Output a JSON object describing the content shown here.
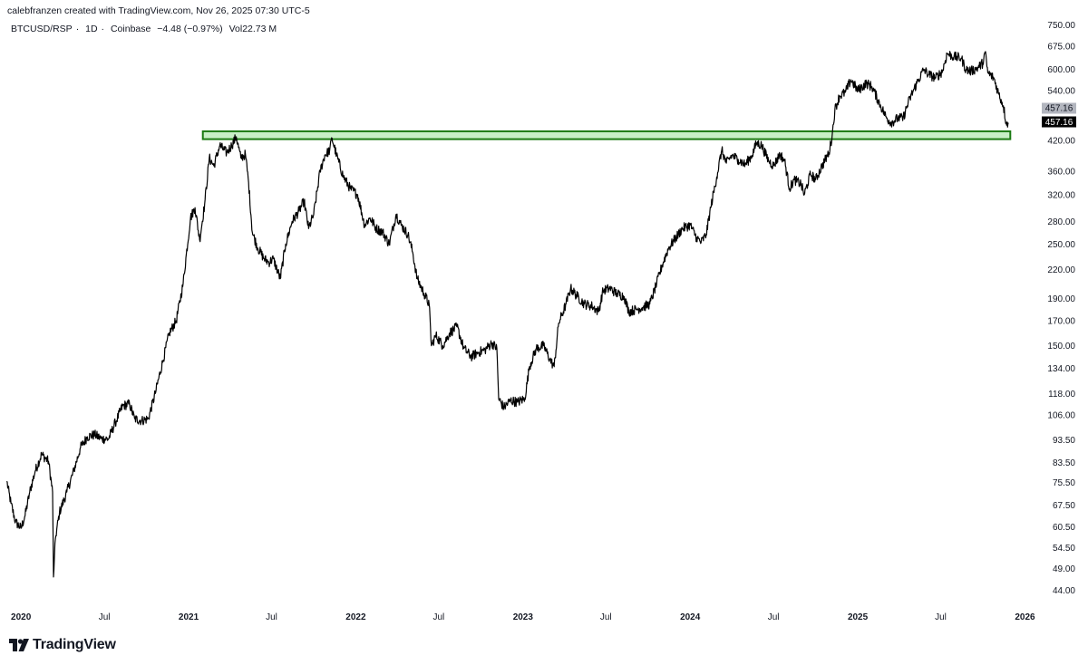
{
  "header": {
    "attribution": "calebfranzen created with TradingView.com, Nov 26, 2025 07:30 UTC-5",
    "symbol": "BTCUSD/RSP",
    "interval": "1D",
    "exchange": "Coinbase",
    "change": "−4.48 (−0.97%)",
    "volume_label": "Vol",
    "volume_value": "22.73 M",
    "separator": "·"
  },
  "brand": {
    "name": "TradingView",
    "logo_icon": "tradingview-logo-icon"
  },
  "chart_data": {
    "type": "line",
    "title": "",
    "xlabel": "",
    "ylabel": "",
    "y_scale": "log",
    "ylim": [
      40.8,
      820
    ],
    "xlim": [
      "2019-11-28",
      "2026-01-10"
    ],
    "grid": false,
    "line_color": "#000000",
    "x_ticks": [
      {
        "date": "2020-01-01",
        "label": "2020",
        "bold": true
      },
      {
        "date": "2020-07-01",
        "label": "Jul",
        "bold": false
      },
      {
        "date": "2021-01-01",
        "label": "2021",
        "bold": true
      },
      {
        "date": "2021-07-01",
        "label": "Jul",
        "bold": false
      },
      {
        "date": "2022-01-01",
        "label": "2022",
        "bold": true
      },
      {
        "date": "2022-07-01",
        "label": "Jul",
        "bold": false
      },
      {
        "date": "2023-01-01",
        "label": "2023",
        "bold": true
      },
      {
        "date": "2023-07-01",
        "label": "Jul",
        "bold": false
      },
      {
        "date": "2024-01-01",
        "label": "2024",
        "bold": true
      },
      {
        "date": "2024-07-01",
        "label": "Jul",
        "bold": false
      },
      {
        "date": "2025-01-01",
        "label": "2025",
        "bold": true
      },
      {
        "date": "2025-07-01",
        "label": "Jul",
        "bold": false
      },
      {
        "date": "2026-01-01",
        "label": "2026",
        "bold": true
      }
    ],
    "y_ticks": [
      "750.00",
      "675.00",
      "600.00",
      "540.00",
      "420.00",
      "360.00",
      "320.00",
      "280.00",
      "250.00",
      "220.00",
      "190.00",
      "170.00",
      "150.00",
      "134.00",
      "118.00",
      "106.00",
      "93.50",
      "83.50",
      "75.50",
      "67.50",
      "60.50",
      "54.50",
      "49.00",
      "44.00"
    ],
    "last_price": {
      "value": 457.16,
      "label": "457.16",
      "close_label": "457.16"
    },
    "annotations": [
      {
        "type": "zone",
        "x_start": "2021-02-01",
        "x_end": "2025-11-30",
        "y_low": 423,
        "y_high": 440,
        "fill": "#c8efc6",
        "stroke": "#1b7a12"
      }
    ],
    "series": [
      {
        "points": [
          [
            "2019-12-01",
            76
          ],
          [
            "2019-12-10",
            68
          ],
          [
            "2019-12-20",
            62
          ],
          [
            "2020-01-01",
            60
          ],
          [
            "2020-01-10",
            64
          ],
          [
            "2020-01-20",
            72
          ],
          [
            "2020-02-01",
            80
          ],
          [
            "2020-02-15",
            87
          ],
          [
            "2020-03-01",
            84
          ],
          [
            "2020-03-10",
            72
          ],
          [
            "2020-03-12",
            47
          ],
          [
            "2020-03-16",
            57
          ],
          [
            "2020-03-25",
            65
          ],
          [
            "2020-04-10",
            72
          ],
          [
            "2020-04-25",
            80
          ],
          [
            "2020-05-10",
            90
          ],
          [
            "2020-05-25",
            95
          ],
          [
            "2020-06-10",
            96
          ],
          [
            "2020-06-25",
            94
          ],
          [
            "2020-07-10",
            94
          ],
          [
            "2020-07-25",
            102
          ],
          [
            "2020-08-10",
            111
          ],
          [
            "2020-08-25",
            112
          ],
          [
            "2020-09-05",
            104
          ],
          [
            "2020-09-20",
            103
          ],
          [
            "2020-10-05",
            104
          ],
          [
            "2020-10-20",
            118
          ],
          [
            "2020-11-05",
            138
          ],
          [
            "2020-11-20",
            160
          ],
          [
            "2020-12-05",
            170
          ],
          [
            "2020-12-20",
            205
          ],
          [
            "2021-01-05",
            285
          ],
          [
            "2021-01-15",
            300
          ],
          [
            "2021-01-25",
            255
          ],
          [
            "2021-02-05",
            305
          ],
          [
            "2021-02-15",
            385
          ],
          [
            "2021-02-25",
            370
          ],
          [
            "2021-03-10",
            410
          ],
          [
            "2021-03-25",
            395
          ],
          [
            "2021-04-05",
            410
          ],
          [
            "2021-04-15",
            428
          ],
          [
            "2021-04-25",
            385
          ],
          [
            "2021-05-05",
            392
          ],
          [
            "2021-05-12",
            340
          ],
          [
            "2021-05-20",
            265
          ],
          [
            "2021-06-01",
            245
          ],
          [
            "2021-06-15",
            232
          ],
          [
            "2021-06-25",
            228
          ],
          [
            "2021-07-05",
            232
          ],
          [
            "2021-07-20",
            210
          ],
          [
            "2021-08-01",
            250
          ],
          [
            "2021-08-15",
            280
          ],
          [
            "2021-08-30",
            295
          ],
          [
            "2021-09-10",
            310
          ],
          [
            "2021-09-20",
            270
          ],
          [
            "2021-10-01",
            290
          ],
          [
            "2021-10-15",
            360
          ],
          [
            "2021-10-25",
            390
          ],
          [
            "2021-11-05",
            400
          ],
          [
            "2021-11-10",
            425
          ],
          [
            "2021-11-20",
            390
          ],
          [
            "2021-12-05",
            350
          ],
          [
            "2021-12-20",
            330
          ],
          [
            "2022-01-05",
            320
          ],
          [
            "2022-01-20",
            275
          ],
          [
            "2022-02-01",
            285
          ],
          [
            "2022-02-15",
            270
          ],
          [
            "2022-03-01",
            265
          ],
          [
            "2022-03-15",
            250
          ],
          [
            "2022-03-30",
            290
          ],
          [
            "2022-04-10",
            275
          ],
          [
            "2022-04-25",
            262
          ],
          [
            "2022-05-05",
            240
          ],
          [
            "2022-05-15",
            210
          ],
          [
            "2022-05-30",
            195
          ],
          [
            "2022-06-10",
            185
          ],
          [
            "2022-06-15",
            150
          ],
          [
            "2022-06-25",
            158
          ],
          [
            "2022-07-10",
            150
          ],
          [
            "2022-07-25",
            160
          ],
          [
            "2022-08-10",
            165
          ],
          [
            "2022-08-25",
            148
          ],
          [
            "2022-09-10",
            142
          ],
          [
            "2022-09-25",
            145
          ],
          [
            "2022-10-10",
            147
          ],
          [
            "2022-10-25",
            152
          ],
          [
            "2022-11-05",
            148
          ],
          [
            "2022-11-09",
            115
          ],
          [
            "2022-11-20",
            110
          ],
          [
            "2022-12-05",
            114
          ],
          [
            "2022-12-20",
            113
          ],
          [
            "2023-01-05",
            115
          ],
          [
            "2023-01-15",
            135
          ],
          [
            "2023-01-30",
            148
          ],
          [
            "2023-02-15",
            150
          ],
          [
            "2023-03-01",
            140
          ],
          [
            "2023-03-10",
            135
          ],
          [
            "2023-03-20",
            168
          ],
          [
            "2023-04-05",
            185
          ],
          [
            "2023-04-15",
            200
          ],
          [
            "2023-04-30",
            192
          ],
          [
            "2023-05-15",
            185
          ],
          [
            "2023-06-01",
            183
          ],
          [
            "2023-06-15",
            178
          ],
          [
            "2023-06-25",
            198
          ],
          [
            "2023-07-10",
            200
          ],
          [
            "2023-07-25",
            195
          ],
          [
            "2023-08-10",
            192
          ],
          [
            "2023-08-20",
            178
          ],
          [
            "2023-09-05",
            180
          ],
          [
            "2023-09-20",
            182
          ],
          [
            "2023-10-05",
            185
          ],
          [
            "2023-10-20",
            205
          ],
          [
            "2023-11-01",
            225
          ],
          [
            "2023-11-15",
            245
          ],
          [
            "2023-12-01",
            258
          ],
          [
            "2023-12-15",
            270
          ],
          [
            "2024-01-01",
            275
          ],
          [
            "2024-01-15",
            258
          ],
          [
            "2024-01-25",
            252
          ],
          [
            "2024-02-05",
            262
          ],
          [
            "2024-02-15",
            300
          ],
          [
            "2024-02-28",
            350
          ],
          [
            "2024-03-10",
            400
          ],
          [
            "2024-03-20",
            375
          ],
          [
            "2024-04-01",
            390
          ],
          [
            "2024-04-15",
            382
          ],
          [
            "2024-04-30",
            372
          ],
          [
            "2024-05-15",
            390
          ],
          [
            "2024-05-25",
            415
          ],
          [
            "2024-06-05",
            410
          ],
          [
            "2024-06-20",
            380
          ],
          [
            "2024-07-01",
            370
          ],
          [
            "2024-07-15",
            392
          ],
          [
            "2024-07-25",
            380
          ],
          [
            "2024-08-05",
            330
          ],
          [
            "2024-08-15",
            345
          ],
          [
            "2024-08-30",
            338
          ],
          [
            "2024-09-06",
            320
          ],
          [
            "2024-09-20",
            355
          ],
          [
            "2024-10-01",
            345
          ],
          [
            "2024-10-15",
            370
          ],
          [
            "2024-10-30",
            395
          ],
          [
            "2024-11-06",
            430
          ],
          [
            "2024-11-12",
            490
          ],
          [
            "2024-11-22",
            525
          ],
          [
            "2024-12-05",
            535
          ],
          [
            "2024-12-17",
            570
          ],
          [
            "2025-01-01",
            540
          ],
          [
            "2025-01-20",
            560
          ],
          [
            "2025-02-01",
            550
          ],
          [
            "2025-02-20",
            500
          ],
          [
            "2025-03-05",
            470
          ],
          [
            "2025-03-15",
            460
          ],
          [
            "2025-03-30",
            470
          ],
          [
            "2025-04-10",
            470
          ],
          [
            "2025-04-25",
            520
          ],
          [
            "2025-05-10",
            560
          ],
          [
            "2025-05-25",
            600
          ],
          [
            "2025-06-05",
            585
          ],
          [
            "2025-06-20",
            575
          ],
          [
            "2025-07-05",
            595
          ],
          [
            "2025-07-15",
            650
          ],
          [
            "2025-07-30",
            640
          ],
          [
            "2025-08-15",
            635
          ],
          [
            "2025-08-25",
            600
          ],
          [
            "2025-09-05",
            595
          ],
          [
            "2025-09-20",
            605
          ],
          [
            "2025-10-01",
            620
          ],
          [
            "2025-10-06",
            655
          ],
          [
            "2025-10-12",
            590
          ],
          [
            "2025-10-25",
            575
          ],
          [
            "2025-11-05",
            530
          ],
          [
            "2025-11-15",
            500
          ],
          [
            "2025-11-21",
            460
          ],
          [
            "2025-11-26",
            457.16
          ]
        ]
      }
    ]
  }
}
